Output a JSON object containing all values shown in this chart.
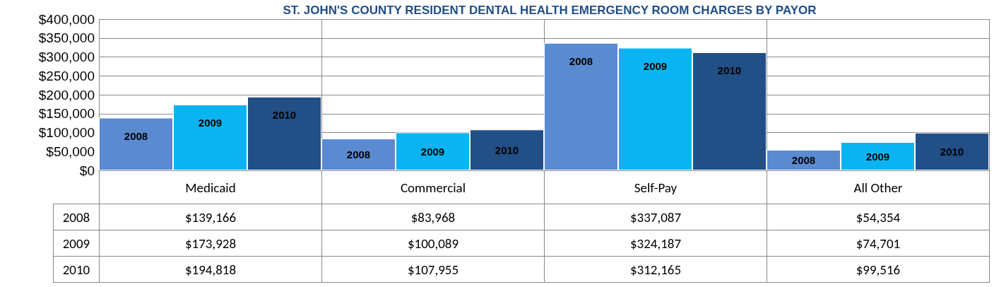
{
  "chart_data": {
    "type": "bar",
    "title": "ST. JOHN'S COUNTY RESIDENT DENTAL HEALTH EMERGENCY ROOM CHARGES BY PAYOR",
    "categories": [
      "Medicaid",
      "Commercial",
      "Self-Pay",
      "All Other"
    ],
    "series": [
      {
        "name": "2008",
        "color": "#5a8ad0",
        "values": [
          139166,
          83968,
          337087,
          54354
        ],
        "value_labels": [
          "$139,166",
          "$83,968",
          "$337,087",
          "$54,354"
        ]
      },
      {
        "name": "2009",
        "color": "#0ab4f2",
        "values": [
          173928,
          100089,
          324187,
          74701
        ],
        "value_labels": [
          "$173,928",
          "$100,089",
          "$324,187",
          "$74,701"
        ]
      },
      {
        "name": "2010",
        "color": "#214f86",
        "values": [
          194818,
          107955,
          312165,
          99516
        ],
        "value_labels": [
          "$194,818",
          "$107,955",
          "$312,165",
          "$99,516"
        ]
      }
    ],
    "ylim": [
      0,
      400000
    ],
    "yticks": [
      {
        "value": 0,
        "label": "$0"
      },
      {
        "value": 50000,
        "label": "$50,000"
      },
      {
        "value": 100000,
        "label": "$100,000"
      },
      {
        "value": 150000,
        "label": "$150,000"
      },
      {
        "value": 200000,
        "label": "$200,000"
      },
      {
        "value": 250000,
        "label": "$250,000"
      },
      {
        "value": 300000,
        "label": "$300,000"
      },
      {
        "value": 350000,
        "label": "$350,000"
      },
      {
        "value": 400000,
        "label": "$400,000"
      }
    ],
    "grid": true,
    "legend": false,
    "data_labels": true
  }
}
